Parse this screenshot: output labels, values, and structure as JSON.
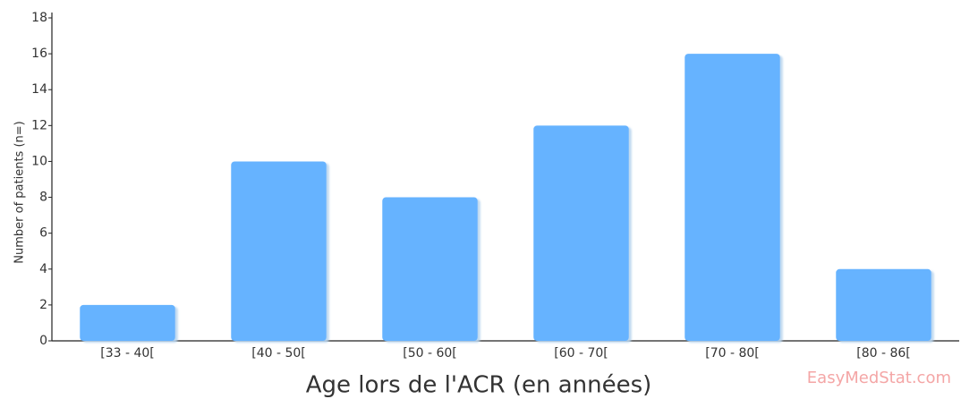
{
  "chart_data": {
    "type": "bar",
    "categories": [
      "[33 - 40[",
      "[40 - 50[",
      "[50 - 60[",
      "[60 - 70[",
      "[70 - 80[",
      "[80 - 86["
    ],
    "values": [
      2,
      10,
      8,
      12,
      16,
      4
    ],
    "color": "#66b3ff",
    "ylim": [
      0,
      18
    ],
    "yticks": [
      0,
      2,
      4,
      6,
      8,
      10,
      12,
      14,
      16,
      18
    ],
    "ylabel": "Number of patients (n=)",
    "xlabel": "Age lors de l'ACR (en années)",
    "watermark": "EasyMedStat.com",
    "grid": false
  }
}
